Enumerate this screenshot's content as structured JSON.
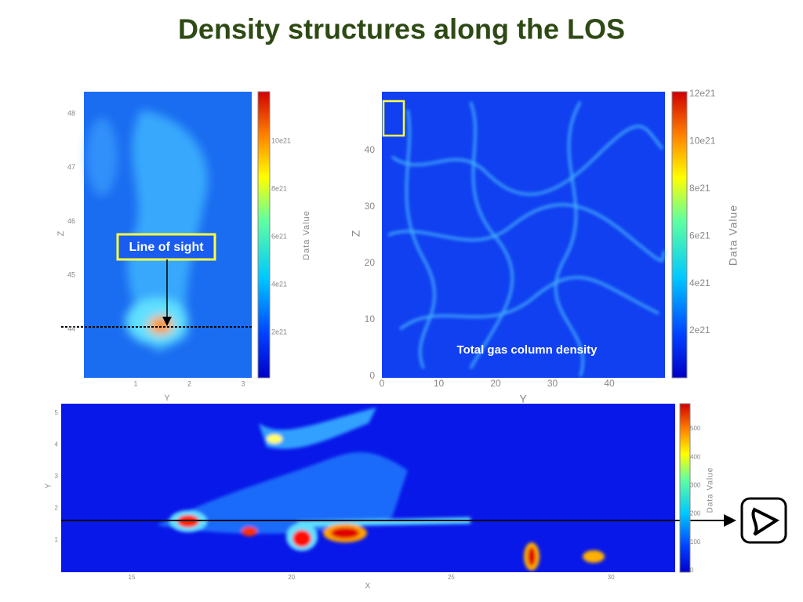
{
  "title": "Density structures along the LOS",
  "panel_zoom": {
    "label": "Line of sight",
    "x_axis": "Y",
    "y_axis": "Z",
    "xticks": [
      1,
      2,
      3
    ],
    "yticks": [
      44,
      45,
      46,
      47,
      48
    ],
    "colorbar": {
      "title": "Data Value",
      "ticks": [
        "2e21",
        "4e21",
        "6e21",
        "8e21",
        "10e21"
      ]
    }
  },
  "panel_full": {
    "label": "Total gas column density",
    "x_axis": "Y",
    "y_axis": "Z",
    "xticks": [
      0,
      10,
      20,
      30,
      40
    ],
    "yticks": [
      0,
      10,
      20,
      30,
      40
    ],
    "colorbar": {
      "title": "Data Value",
      "ticks": [
        "2e21",
        "4e21",
        "6e21",
        "8e21",
        "10e21",
        "12e21"
      ]
    }
  },
  "panel_los": {
    "x_axis": "X",
    "y_axis": "Y",
    "xticks": [
      15,
      20,
      25,
      30
    ],
    "yticks": [
      1,
      2,
      3,
      4,
      5
    ],
    "colorbar": {
      "title": "Data Value",
      "ticks": [
        0,
        100,
        200,
        300,
        400,
        500
      ]
    }
  }
}
